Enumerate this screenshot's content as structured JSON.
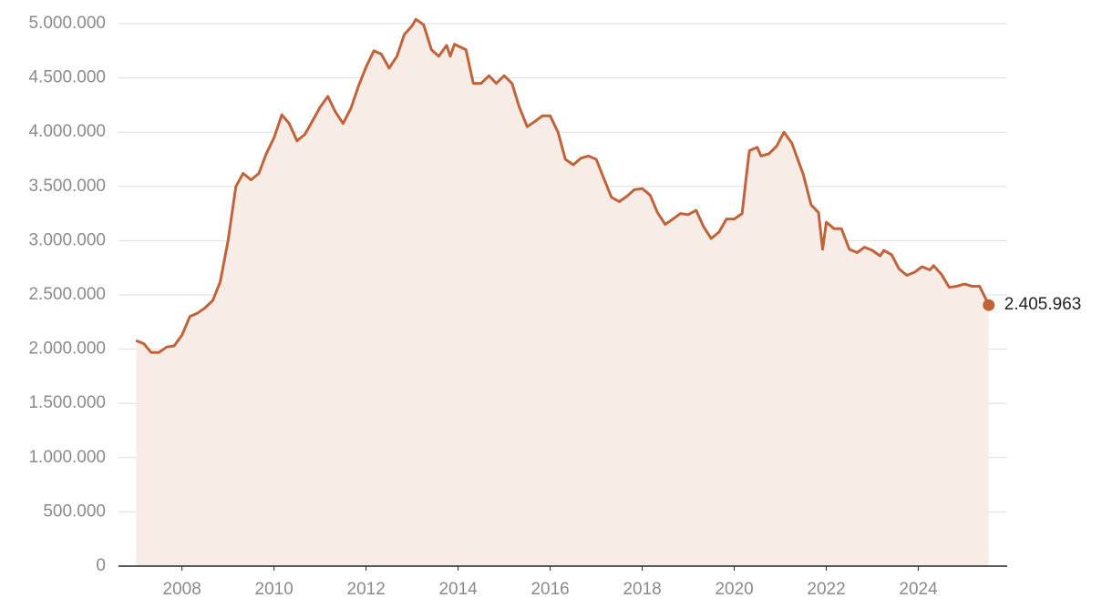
{
  "chart_data": {
    "type": "area",
    "color": "#c0633a",
    "fill": "#f8ece7",
    "x": [
      2007.0,
      2007.17,
      2007.33,
      2007.5,
      2007.67,
      2007.83,
      2008.0,
      2008.17,
      2008.33,
      2008.5,
      2008.67,
      2008.83,
      2009.0,
      2009.17,
      2009.33,
      2009.5,
      2009.67,
      2009.83,
      2010.0,
      2010.17,
      2010.33,
      2010.5,
      2010.67,
      2010.83,
      2011.0,
      2011.17,
      2011.33,
      2011.5,
      2011.67,
      2011.83,
      2012.0,
      2012.17,
      2012.33,
      2012.5,
      2012.67,
      2012.83,
      2013.0,
      2013.08,
      2013.25,
      2013.42,
      2013.58,
      2013.75,
      2013.83,
      2013.92,
      2014.17,
      2014.33,
      2014.5,
      2014.67,
      2014.83,
      2015.0,
      2015.17,
      2015.33,
      2015.5,
      2015.67,
      2015.83,
      2016.0,
      2016.17,
      2016.33,
      2016.5,
      2016.67,
      2016.83,
      2017.0,
      2017.17,
      2017.33,
      2017.5,
      2017.67,
      2017.83,
      2018.0,
      2018.17,
      2018.33,
      2018.5,
      2018.67,
      2018.83,
      2019.0,
      2019.17,
      2019.33,
      2019.5,
      2019.67,
      2019.83,
      2020.0,
      2020.17,
      2020.25,
      2020.33,
      2020.5,
      2020.58,
      2020.75,
      2020.92,
      2021.08,
      2021.25,
      2021.5,
      2021.67,
      2021.83,
      2021.92,
      2022.0,
      2022.17,
      2022.33,
      2022.5,
      2022.67,
      2022.83,
      2023.0,
      2023.17,
      2023.25,
      2023.42,
      2023.58,
      2023.75,
      2023.92,
      2024.08,
      2024.25,
      2024.33,
      2024.5,
      2024.67,
      2024.83,
      2025.0,
      2025.17,
      2025.33,
      2025.53
    ],
    "values": [
      2080000,
      2050000,
      1970000,
      1970000,
      2020000,
      2030000,
      2130000,
      2300000,
      2330000,
      2380000,
      2450000,
      2620000,
      3000000,
      3500000,
      3620000,
      3560000,
      3620000,
      3800000,
      3950000,
      4160000,
      4080000,
      3920000,
      3980000,
      4100000,
      4230000,
      4330000,
      4190000,
      4080000,
      4220000,
      4420000,
      4600000,
      4750000,
      4720000,
      4590000,
      4700000,
      4900000,
      4980000,
      5040000,
      4990000,
      4760000,
      4700000,
      4800000,
      4700000,
      4810000,
      4760000,
      4450000,
      4450000,
      4520000,
      4450000,
      4520000,
      4450000,
      4230000,
      4050000,
      4100000,
      4150000,
      4150000,
      4000000,
      3750000,
      3700000,
      3760000,
      3780000,
      3750000,
      3570000,
      3400000,
      3360000,
      3410000,
      3470000,
      3480000,
      3420000,
      3260000,
      3150000,
      3200000,
      3250000,
      3240000,
      3280000,
      3130000,
      3020000,
      3080000,
      3200000,
      3200000,
      3250000,
      3550000,
      3830000,
      3860000,
      3780000,
      3800000,
      3870000,
      4000000,
      3900000,
      3610000,
      3330000,
      3260000,
      2920000,
      3170000,
      3110000,
      3110000,
      2920000,
      2890000,
      2940000,
      2910000,
      2860000,
      2910000,
      2870000,
      2740000,
      2680000,
      2710000,
      2760000,
      2730000,
      2770000,
      2690000,
      2570000,
      2580000,
      2600000,
      2580000,
      2580000,
      2405963
    ],
    "value_labels": [
      null,
      null,
      null,
      null,
      null,
      null,
      null,
      null,
      null,
      null,
      null,
      null,
      null,
      null,
      null,
      null,
      null,
      null,
      null,
      null,
      null,
      null,
      null,
      null,
      null,
      null,
      null,
      null,
      null,
      null,
      null,
      null,
      null,
      null,
      null,
      null,
      null,
      null,
      null,
      null,
      null,
      null,
      null,
      null,
      null,
      null,
      null,
      null,
      null,
      null,
      null,
      null,
      null,
      null,
      null,
      null,
      null,
      null,
      null,
      null,
      null,
      null,
      null,
      null,
      null,
      null,
      null,
      null,
      null,
      null,
      null,
      null,
      null,
      null,
      null,
      null,
      null,
      null,
      null,
      null,
      null,
      null,
      null,
      null,
      null,
      null,
      null,
      null,
      null,
      null,
      null,
      null,
      null,
      null,
      null,
      null,
      null,
      null,
      null,
      null,
      null,
      null,
      null,
      null,
      null,
      null,
      null,
      null,
      null,
      null,
      null,
      null,
      null,
      null,
      null,
      "2.405.963"
    ],
    "xlim": [
      2006.62,
      2025.93
    ],
    "xticks": [
      2008,
      2010,
      2012,
      2014,
      2016,
      2018,
      2020,
      2022,
      2024
    ],
    "ylim": [
      0,
      5000000
    ],
    "yticks": [
      0,
      {
        "value": 500000,
        "label": "500.000"
      },
      {
        "value": 1000000,
        "label": "1.000.000"
      },
      {
        "value": 1500000,
        "label": "1.500.000"
      },
      {
        "value": 2000000,
        "label": "2.000.000"
      },
      {
        "value": 2500000,
        "label": "2.500.000"
      },
      {
        "value": 3000000,
        "label": "3.000.000"
      },
      {
        "value": 3500000,
        "label": "3.500.000"
      },
      {
        "value": 4000000,
        "label": "4.000.000"
      },
      {
        "value": 4500000,
        "label": "4.500.000"
      },
      {
        "value": 5000000,
        "label": "5.000.000"
      }
    ],
    "grid": true
  }
}
